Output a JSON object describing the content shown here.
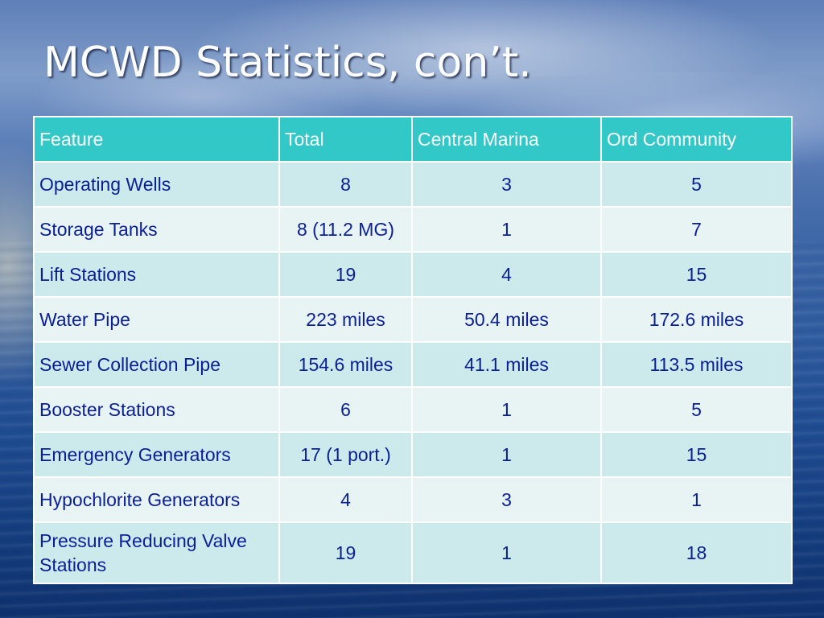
{
  "slide": {
    "title": "MCWD Statistics, con’t."
  },
  "table": {
    "headers": [
      "Feature",
      "Total",
      "Central Marina",
      "Ord Community"
    ],
    "rows": [
      [
        "Operating Wells",
        "8",
        "3",
        "5"
      ],
      [
        "Storage Tanks",
        "8 (11.2 MG)",
        "1",
        "7"
      ],
      [
        "Lift Stations",
        "19",
        "4",
        "15"
      ],
      [
        "Water Pipe",
        "223 miles",
        "50.4 miles",
        "172.6 miles"
      ],
      [
        "Sewer Collection Pipe",
        "154.6 miles",
        "41.1 miles",
        "113.5 miles"
      ],
      [
        "Booster Stations",
        "6",
        "1",
        "5"
      ],
      [
        "Emergency Generators",
        "17 (1 port.)",
        "1",
        "15"
      ],
      [
        "Hypochlorite Generators",
        "4",
        "3",
        "1"
      ],
      [
        "Pressure Reducing Valve Stations",
        "19",
        "1",
        "18"
      ]
    ]
  },
  "colors": {
    "header_bg": "#33c8c8",
    "row_dark": "#cceaeb",
    "row_light": "#e8f4f4",
    "cell_text": "#0a1f95"
  }
}
